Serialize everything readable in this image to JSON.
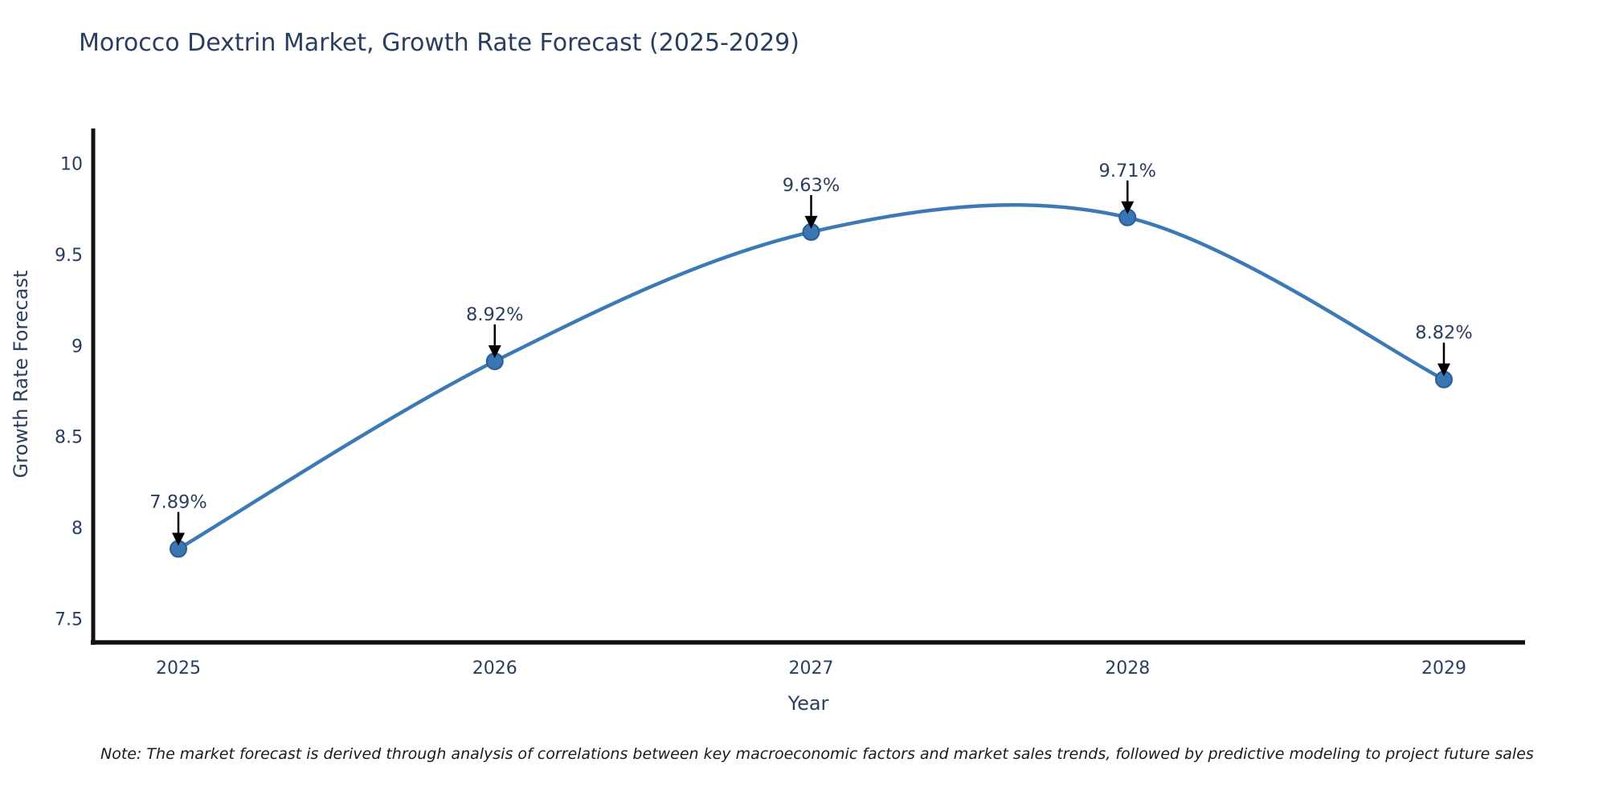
{
  "title": "Morocco Dextrin Market, Growth Rate Forecast (2025-2029)",
  "note": "Note: The market forecast is derived through analysis of correlations between key macroeconomic factors and market sales trends, followed by predictive modeling to project future sales",
  "chart_data": {
    "type": "line",
    "curve": "spline",
    "title": "Morocco Dextrin Market, Growth Rate Forecast (2025-2029)",
    "xlabel": "Year",
    "ylabel": "Growth Rate Forecast",
    "x": [
      2025,
      2026,
      2027,
      2028,
      2029
    ],
    "values": [
      7.89,
      8.92,
      9.63,
      9.71,
      8.82
    ],
    "point_labels": [
      "7.89%",
      "8.92%",
      "9.63%",
      "9.71%",
      "8.82%"
    ],
    "xticks": [
      "2025",
      "2026",
      "2027",
      "2028",
      "2029"
    ],
    "yticks": [
      7.5,
      8,
      8.5,
      9,
      9.5,
      10
    ],
    "ylim": [
      7.38,
      10.2
    ],
    "grid": false,
    "legend": "none",
    "colors": {
      "line": "#3c79b5",
      "marker_fill": "#3a76b2",
      "marker_edge": "#2a5d94",
      "axis": "#111111",
      "tick_text": "#2a3f5f",
      "annotation_text": "#2a3f5f",
      "arrow": "#000000",
      "background": "#ffffff"
    }
  }
}
